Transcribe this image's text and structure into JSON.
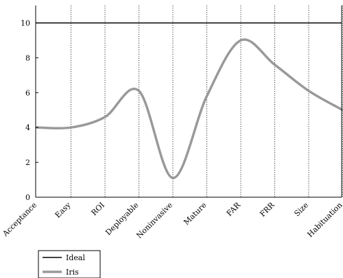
{
  "chart_data": {
    "type": "line",
    "categories": [
      "Acceptance",
      "Easy",
      "ROI",
      "Deployable",
      "Noninvasive",
      "Mature",
      "FAR",
      "FRR",
      "Size",
      "Habituation"
    ],
    "ylim": [
      0,
      11
    ],
    "yticks": [
      0,
      2,
      4,
      6,
      8,
      10
    ],
    "grid": "vertical-dotted",
    "legend_position": "bottom-left",
    "series": [
      {
        "name": "Ideal",
        "color": "#000000",
        "values": [
          10,
          10,
          10,
          10,
          10,
          10,
          10,
          10,
          10,
          10
        ]
      },
      {
        "name": "Iris",
        "color": "#999999",
        "values": [
          4.0,
          4.0,
          4.6,
          6.1,
          1.1,
          5.8,
          9.0,
          7.6,
          6.1,
          5.0
        ]
      }
    ]
  }
}
